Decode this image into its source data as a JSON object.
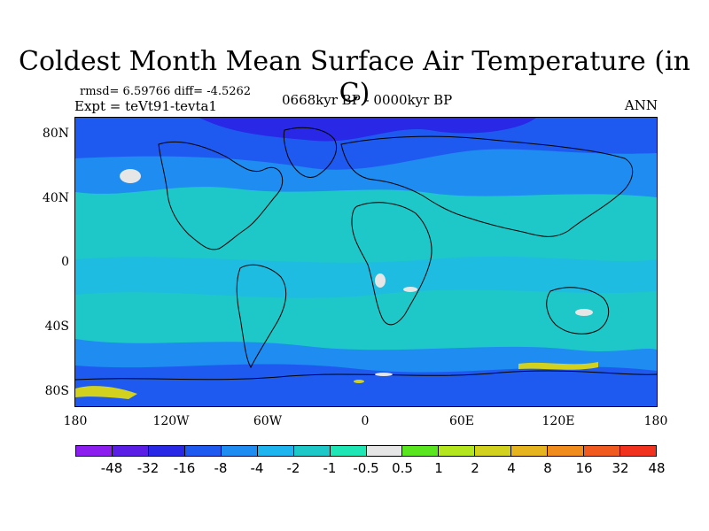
{
  "title": "Coldest Month Mean Surface Air Temperature (in C)",
  "stats": {
    "rmsd": "rmsd= 6.59766 diff= -4.5262",
    "expt": "Expt = teVt91-tevta1",
    "period": "0668kyr BP - 0000kyr BP",
    "season": "ANN"
  },
  "map": {
    "projection": "cylindrical-equidistant",
    "lat_labels": [
      "80N",
      "40N",
      "0",
      "40S",
      "80S"
    ],
    "lon_labels": [
      "180",
      "120W",
      "60W",
      "0",
      "60E",
      "120E",
      "180"
    ],
    "ocean_color": "#1ec8c8",
    "deep_blue": "#1e5af0",
    "mid_blue": "#1e8cf0",
    "dark_violet": "#2828e6",
    "coast_color": "#000000"
  },
  "colorbar": {
    "labels": [
      "-48",
      "-32",
      "-16",
      "-8",
      "-4",
      "-2",
      "-1",
      "-0.5",
      "0.5",
      "1",
      "2",
      "4",
      "8",
      "16",
      "32",
      "48"
    ],
    "colors": [
      "#8c1ef0",
      "#5a1ee6",
      "#2828e6",
      "#1e5af0",
      "#1e8cf0",
      "#1eb4f0",
      "#1ec8c8",
      "#1ee6b4",
      "#e6e6e6",
      "#5ae61e",
      "#b4e61e",
      "#d2d21e",
      "#e6b41e",
      "#f08c1e",
      "#f05a1e",
      "#f0321e"
    ]
  }
}
